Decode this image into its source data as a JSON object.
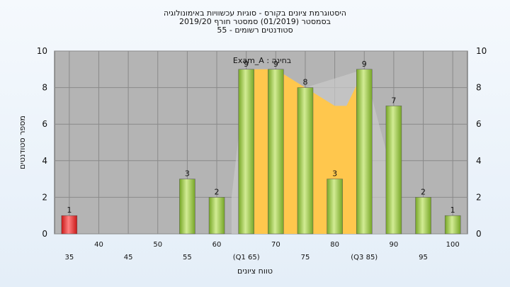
{
  "chart_data": {
    "type": "bar",
    "title_lines": [
      "היסטוגרמת ציונים בקורס - סוגיות עכשוויות באימונולוגיה",
      "בסמסטר  (01/2019)  סמסטר חורף  2019/20",
      "סטודנטים רשומים - 55"
    ],
    "legend_text": "בחינה : Exam_A",
    "ylabel": "מספר סטודנטים",
    "xlabel": "טווח ציונים",
    "ylim": [
      0,
      10
    ],
    "yticks": [
      "0",
      "2",
      "4",
      "6",
      "8",
      "10"
    ],
    "x_labels": [
      {
        "x": 35,
        "label": "35",
        "row": 2
      },
      {
        "x": 40,
        "label": "40",
        "row": 1
      },
      {
        "x": 45,
        "label": "45",
        "row": 2
      },
      {
        "x": 50,
        "label": "50",
        "row": 1
      },
      {
        "x": 55,
        "label": "55",
        "row": 2
      },
      {
        "x": 60,
        "label": "60",
        "row": 1
      },
      {
        "x": 65,
        "label": "(Q1 65)",
        "row": 2
      },
      {
        "x": 70,
        "label": "70",
        "row": 1
      },
      {
        "x": 75,
        "label": "75",
        "row": 2
      },
      {
        "x": 80,
        "label": "80",
        "row": 1
      },
      {
        "x": 85,
        "label": "(Q3 85)",
        "row": 2
      },
      {
        "x": 90,
        "label": "90",
        "row": 1
      },
      {
        "x": 95,
        "label": "95",
        "row": 2
      },
      {
        "x": 100,
        "label": "100",
        "row": 1
      }
    ],
    "bars": [
      {
        "x": 35,
        "value": 1,
        "color": "red"
      },
      {
        "x": 55,
        "value": 3,
        "color": "green"
      },
      {
        "x": 60,
        "value": 2,
        "color": "green"
      },
      {
        "x": 65,
        "value": 9,
        "color": "green"
      },
      {
        "x": 70,
        "value": 9,
        "color": "green"
      },
      {
        "x": 75,
        "value": 8,
        "color": "green"
      },
      {
        "x": 80,
        "value": 3,
        "color": "green"
      },
      {
        "x": 85,
        "value": 9,
        "color": "green"
      },
      {
        "x": 90,
        "value": 7,
        "color": "green"
      },
      {
        "x": 95,
        "value": 2,
        "color": "green"
      },
      {
        "x": 100,
        "value": 1,
        "color": "green"
      }
    ],
    "iqr_area": [
      [
        65,
        9
      ],
      [
        70,
        9
      ],
      [
        75,
        8
      ],
      [
        80,
        7
      ],
      [
        82,
        7
      ],
      [
        85,
        9
      ]
    ],
    "colors": {
      "plot_bg": "#b4b4b4",
      "grid": "#8a8a8a",
      "iqr_fill": "#ffc74d",
      "green_light": "#d2ec94",
      "green_dark": "#76a626",
      "red_light": "#ff8080",
      "red_dark": "#c81818"
    }
  }
}
